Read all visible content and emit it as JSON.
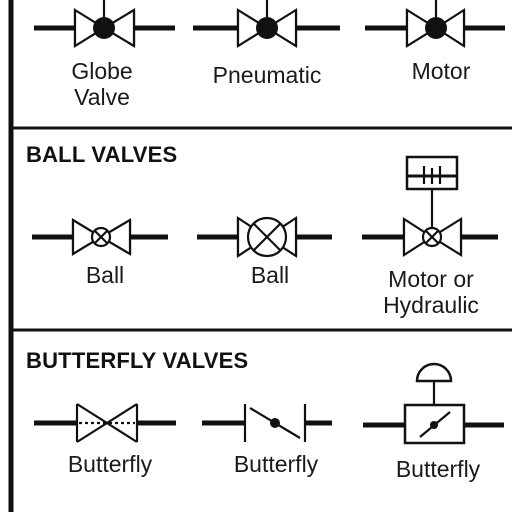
{
  "sections": [
    {
      "heading": "",
      "symbols": [
        {
          "line1": "Globe",
          "line2": "Valve",
          "icon": "globe-valve-icon"
        },
        {
          "line1": "Pneumatic",
          "line2": "",
          "icon": "pneumatic-globe-valve-icon"
        },
        {
          "line1": "Motor",
          "line2": "",
          "icon": "motor-globe-valve-icon"
        }
      ]
    },
    {
      "heading": "BALL VALVES",
      "symbols": [
        {
          "line1": "Ball",
          "line2": "",
          "icon": "ball-valve-icon"
        },
        {
          "line1": "Ball",
          "line2": "",
          "icon": "ball-valve-alt-icon"
        },
        {
          "line1": "Motor or",
          "line2": "Hydraulic",
          "icon": "motor-ball-valve-icon"
        }
      ]
    },
    {
      "heading": "BUTTERFLY VALVES",
      "symbols": [
        {
          "line1": "Butterfly",
          "line2": "",
          "icon": "butterfly-valve-icon"
        },
        {
          "line1": "Butterfly",
          "line2": "",
          "icon": "butterfly-valve-alt-icon"
        },
        {
          "line1": "Butterfly",
          "line2": "",
          "icon": "actuated-butterfly-valve-icon"
        }
      ]
    }
  ]
}
